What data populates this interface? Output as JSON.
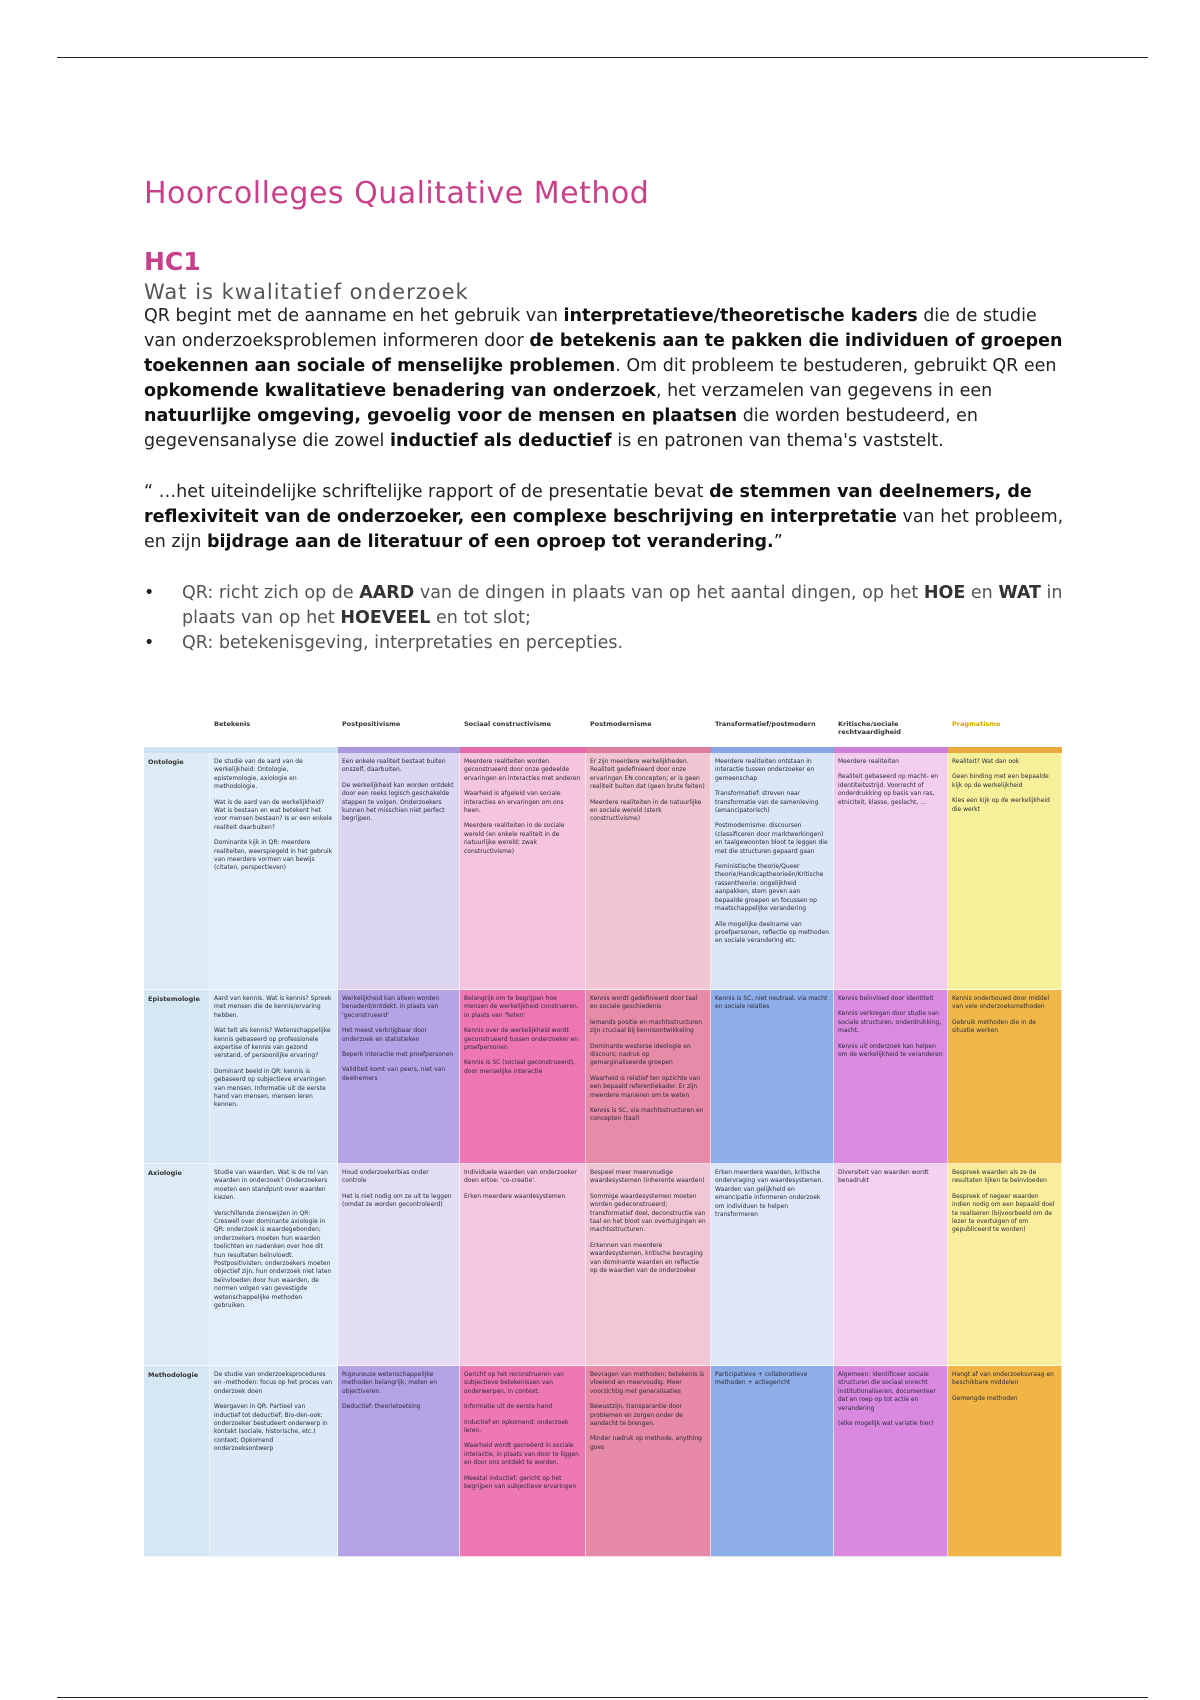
{
  "title": "Hoorcolleges Qualitative Method",
  "section": "HC1",
  "subsection": "Wat is kwalitatief onderzoek",
  "paragraph": [
    {
      "t": "QR begint met de aanname en het gebruik van ",
      "b": false
    },
    {
      "t": "interpretatieve/theoretische kaders",
      "b": true
    },
    {
      "t": " die de studie van onderzoeksproblemen informeren door ",
      "b": false
    },
    {
      "t": "de betekenis aan te pakken die individuen of groepen toekennen aan sociale of menselijke problemen",
      "b": true
    },
    {
      "t": ". Om dit probleem te bestuderen, gebruikt QR een ",
      "b": false
    },
    {
      "t": "opkomende kwalitatieve benadering van onderzoek",
      "b": true
    },
    {
      "t": ", het verzamelen van gegevens in een ",
      "b": false
    },
    {
      "t": "natuurlijke omgeving, gevoelig voor de mensen en plaatsen",
      "b": true
    },
    {
      "t": " die worden bestudeerd, en gegevensanalyse die zowel ",
      "b": false
    },
    {
      "t": "inductief als deductief",
      "b": true
    },
    {
      "t": " is en patronen van thema's vaststelt.",
      "b": false
    }
  ],
  "quote": [
    {
      "t": "“ …het uiteindelijke schriftelijke rapport of de presentatie bevat ",
      "b": false
    },
    {
      "t": "de stemmen van deelnemers, de reflexiviteit van de onderzoeker, een complexe beschrijving en interpretatie",
      "b": true
    },
    {
      "t": " van het probleem, en zijn ",
      "b": false
    },
    {
      "t": "bijdrage aan de literatuur of een oproep tot verandering.",
      "b": true
    },
    {
      "t": "”",
      "b": false
    }
  ],
  "bullets": [
    [
      {
        "t": "QR: richt zich op de ",
        "b": false
      },
      {
        "t": "AARD",
        "b": true
      },
      {
        "t": " van de dingen in plaats van op het aantal dingen, op het ",
        "b": false
      },
      {
        "t": "HOE",
        "b": true
      },
      {
        "t": " en ",
        "b": false
      },
      {
        "t": "WAT",
        "b": true
      },
      {
        "t": " in plaats van op het ",
        "b": false
      },
      {
        "t": "HOEVEEL",
        "b": true
      },
      {
        "t": " en tot slot;",
        "b": false
      }
    ],
    [
      {
        "t": "QR: betekenisgeving, interpretaties en percepties.",
        "b": false
      }
    ]
  ],
  "table": {
    "headers": [
      "",
      "Betekenis",
      "Postpositivisme",
      "Sociaal constructivisme",
      "Postmodernisme",
      "Transformatief/postmodern",
      "Kritische/sociale rechtvaardigheid",
      "Pragmatisme"
    ],
    "header_colors": [
      "#333",
      "#333",
      "#333",
      "#333",
      "#333",
      "#333",
      "#333",
      "#d9a200"
    ],
    "col_colors": [
      [
        "#dcebf5",
        "#e2eff8",
        "#ddd6f3",
        "#f5c4de",
        "#f0c6d3",
        "#dae5f7",
        "#f2cdf0",
        "#f7f09a"
      ],
      [
        "#d6e7f4",
        "#dbeaf6",
        "#b4a4e6",
        "#ee77b3",
        "#e68ba8",
        "#8daee8",
        "#d98be0",
        "#f0b848"
      ],
      [
        "#dcebf5",
        "#e2eff8",
        "#e3dcf5",
        "#f6c7e0",
        "#f1c7d5",
        "#dfe8f8",
        "#f3d1f1",
        "#f8ee9c"
      ],
      [
        "#d6e7f4",
        "#dbeaf6",
        "#b3a3e6",
        "#ee78b4",
        "#e68aa7",
        "#8eaee8",
        "#d98ae0",
        "#f0b545"
      ]
    ],
    "bar_colors": [
      "#cfe3f3",
      "#cfe3f3",
      "#a99ae0",
      "#e66aa8",
      "#de7fa0",
      "#86a7e4",
      "#d07fd8",
      "#eaaa3e"
    ],
    "rows": [
      {
        "label": "Ontologie",
        "cells": [
          [
            "De studie van de aard van de werkelijkheid: Ontologie, epistemologie, axiologie en methodologie.",
            "Wat is de aard van de werkelijkheid? Wat is bestaan en wat betekent het voor mensen bestaan? Is er een enkele realiteit daarbuiten?",
            "Dominante kijk in QR: meerdere realiteiten, weerspiegeld in het gebruik van meerdere vormen van bewijs (citaten, perspectieven)"
          ],
          [
            "Een enkele realiteit bestaat buiten onszelf, daarbuiten.",
            "De werkelijkheid kan worden ontdekt door een reeks logisch geschakelde stappen te volgen. Onderzoekers kunnen het misschien niet perfect begrijpen."
          ],
          [
            "Meerdere realiteiten worden geconstrueerd door onze gedeelde ervaringen en interacties met anderen",
            "Waarheid is afgeleid van sociale interacties en ervaringen om ons heen.",
            "Meerdere realiteiten in de sociale wereld (en enkele realiteit in de natuurlijke wereld; zwak constructivisme)"
          ],
          [
            "Er zijn meerdere werkelijkheden. Realiteit gedefinieerd door onze ervaringen EN concepten; er is geen realiteit buiten dat (geen brute feiten)",
            "Meerdere realiteiten in de natuurlijke en sociale wereld (sterk constructivisme)"
          ],
          [
            "Meerdere realiteiten ontstaan in interactie tussen onderzoeker en gemeenschap",
            "Transformatief: streven naar transformatie van de samenleving (emancipatorisch)",
            "Postmodernisme: discoursen (classificeren door marktwerkingen) en taalgewoonten bloot te leggen die met die structuren gepaard gaan",
            "Feministische theorie/Queer theorie/Handicaptheorieën/Kritische rassentheorie: ongelijkheid aanpakken, stem geven aan bepaalde groepen en focussen op maatschappelijke verandering",
            "Alle mogelijke deelname van proefpersonen, reflectie op methoden en sociale verandering etc."
          ],
          [
            "Meerdere realiteiten",
            "Realiteit gebaseerd op macht- en identiteitsstrijd. Voorrecht of onderdrukking op basis van ras, etniciteit, klasse, geslacht, …"
          ],
          [
            "Realiteit? Wat dan ook",
            "Geen binding met een bepaalde kijk op de werkelijkheid",
            "Kies een kijk op de werkelijkheid die werkt"
          ]
        ]
      },
      {
        "label": "Epistemologie",
        "cells": [
          [
            "Aard van kennis. Wat is kennis? Spreek met mensen die de kennis/ervaring hebben.",
            "Wat telt als kennis? Wetenschappelijke kennis gebaseerd op professionele expertise of kennis van gezond verstand, of persoonlijke ervaring?",
            "Dominant beeld in QR: kennis is gebaseerd op subjectieve ervaringen van mensen. Informatie uit de eerste hand van mensen, mensen leren kennen."
          ],
          [
            "Werkelijkheid kan alleen worden benaderd/ontdekt, in plaats van 'geconstrueerd'",
            "Het meest verkrijgbaar door onderzoek en statistieken",
            "Beperk interactie met proefpersonen",
            "Validiteit komt van peers, niet van deelnemers"
          ],
          [
            "Belangrijk om te begrijpen hoe mensen de werkelijkheid construeren, in plaats van 'feiten'",
            "Kennis over de werkelijkheid wordt geconstrueerd tussen onderzoeker en proefpersonen",
            "Kennis is SC (sociaal geconstrueerd), door menselijke interactie"
          ],
          [
            "Kennis wordt gedefinieerd door taal en sociale geschiedenis",
            "Iemands positie en machtsstructuren zijn cruciaal bij kennisontwikkeling",
            "Dominante westerse ideologie en discours; nadruk op gemarginaliseerde groepen",
            "Waarheid is relatief ten opzichte van een bepaald referentiekader. Er zijn meerdere manieren om te weten",
            "Kennis is SC, via machtsstructuren en concepten (taal)"
          ],
          [
            "Kennis is SC, niet neutraal, via macht en sociale relaties"
          ],
          [
            "Kennis beïnvloed door identiteit",
            "Kennis verkregen door studie van sociale structuren, onderdrukking, macht.",
            "Kennis uit onderzoek kan helpen om de werkelijkheid te veranderen"
          ],
          [
            "Kennis onderbouwd door middel van vele onderzoeksmethoden",
            "Gebruik methoden die in de situatie werken"
          ]
        ]
      },
      {
        "label": "Axiologie",
        "cells": [
          [
            "Studie van waarden. Wat is de rol van waarden in onderzoek? Onderzoekers moeten een standpunt over waarden kiezen.",
            "Verschillende zienswijzen in QR: Creswell over dominante axiologie in QR: onderzoek is waardegebonden; onderzoekers moeten hun waarden toelichten en nadenken over hoe dit hun resultaten beïnvloedt. Postpositivisten: onderzoekers moeten objectief zijn, hun onderzoek niet laten beïnvloeden door hun waarden, de normen volgen van gevestigde wetenschappelijke methoden gebruiken."
          ],
          [
            "Houd onderzoekerbias onder controle",
            "Het is niet nodig om ze uit te leggen (omdat ze worden gecontroleerd)"
          ],
          [
            "Individuele waarden van onderzoeker doen ertoe: 'co-creatie'.",
            "Erken meerdere waardesystemen"
          ],
          [
            "Bespeel meer meervoudige waardesystemen (inherente waarden)",
            "Sommige waardesystemen moeten worden gedeconstrueerd; transformatief doel, deconstructie van taal en het bloot van overtuigingen en machtsstructuren.",
            "Erkennen van meerdere waardesystemen, kritische bevraging van dominante waarden en reflectie op de waarden van de onderzoeker"
          ],
          [
            "Erken meerdere waarden, kritische ondervraging van waardesystemen. Waarden van gelijkheid en emancipatie informeren onderzoek om individuen te helpen transformeren"
          ],
          [
            "Diversiteit van waarden wordt benadrukt"
          ],
          [
            "Bespreek waarden als ze de resultaten lijken te beïnvloeden",
            "Bespreek of negeer waarden indien nodig om een bepaald doel te realiseren (bijvoorbeeld om de lezer te overtuigen of om gepubliceerd te worden)"
          ]
        ]
      },
      {
        "label": "Methodologie",
        "cells": [
          [
            "De studie van onderzoeksprocedures en -methoden: focus op het proces van onderzoek doen",
            "Weergaven in QR: Partieel van inductief tot deductief; Bio-den-ook: onderzoeker bestudeert onderwerp in kontakt (sociale, historische, etc.) context; Opkomend onderzoeksontwerp"
          ],
          [
            "Rigoureuze wetenschappelijke methoden belangrijk; meten en objectiveren.",
            "Deductief: theorietoetsing"
          ],
          [
            "Gericht op het reconstrueren van subjectieve betekenissen van onderwerpen, in context.",
            "Informatie uit de eerste hand",
            "Inductief en opkomend; onderzoek leren.",
            "Waarheid wordt gecreëerd in sociale interactie, in plaats van door te liggen en door ons ontdekt te worden.",
            "Meestal inductief, gericht op het begrijpen van subjectieve ervaringen"
          ],
          [
            "Bevragen van methoden; betekenis is vloeiend en meervoudig. Meer voorzichtig met generalisaties",
            "Bewustzijn, transparantie door problemen en zorgen onder de aandacht te brengen.",
            "Minder nadruk op methode, anything goes"
          ],
          [
            "Participatieve + collaboratieve methoden + actiegericht"
          ],
          [
            "Algemeen: identificeer sociale structuren die sociaal onrecht institutionaliseren, documenteer dat en roep op tot actie en verandering",
            "(elke mogelijk wat variatie hier)"
          ],
          [
            "Hangt af van onderzoeksvraag en beschikbare middelen",
            "Gemengde methoden"
          ]
        ]
      }
    ]
  }
}
